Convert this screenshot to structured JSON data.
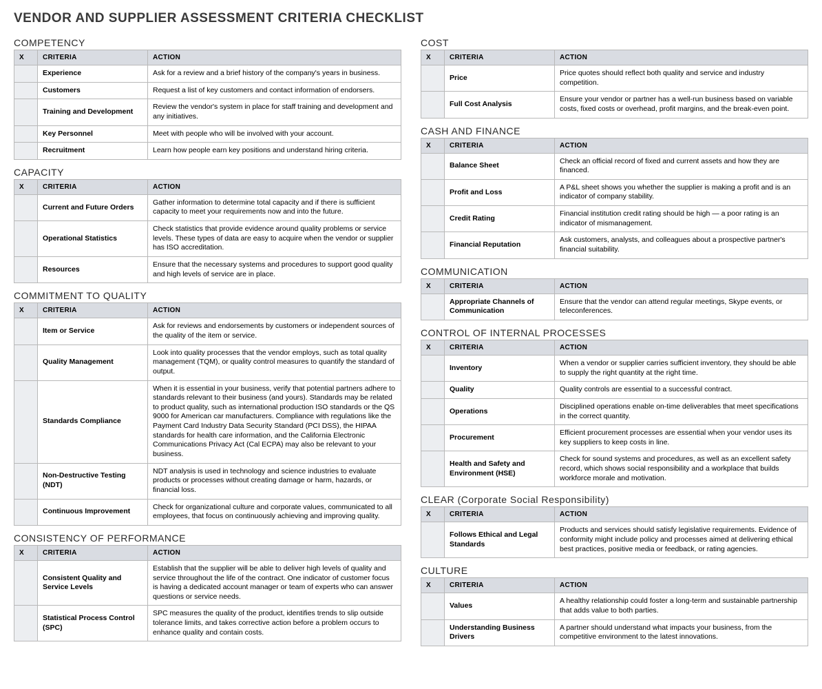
{
  "title": "VENDOR AND SUPPLIER ASSESSMENT CRITERIA CHECKLIST",
  "headers": {
    "x": "X",
    "criteria": "CRITERIA",
    "action": "ACTION"
  },
  "left_sections": [
    {
      "title": "COMPETENCY",
      "rows": [
        {
          "criteria": "Experience",
          "action": "Ask for a review and a brief history of the company's years in business."
        },
        {
          "criteria": "Customers",
          "action": "Request a list of key customers and contact information of endorsers."
        },
        {
          "criteria": "Training and Development",
          "action": "Review the vendor's system in place for staff training and development and any initiatives."
        },
        {
          "criteria": "Key Personnel",
          "action": "Meet with people who will be involved with your account."
        },
        {
          "criteria": "Recruitment",
          "action": "Learn how people earn key positions and understand hiring criteria."
        }
      ]
    },
    {
      "title": "CAPACITY",
      "rows": [
        {
          "criteria": "Current and Future Orders",
          "action": "Gather information to determine total capacity and if there is sufficient capacity to meet your requirements now and into the future."
        },
        {
          "criteria": "Operational Statistics",
          "action": "Check statistics that provide evidence around quality problems or service levels. These types of data are easy to acquire when the vendor or supplier has ISO accreditation."
        },
        {
          "criteria": "Resources",
          "action": "Ensure that the necessary systems and procedures to support good quality and high levels of service are in place."
        }
      ]
    },
    {
      "title": "COMMITMENT TO QUALITY",
      "rows": [
        {
          "criteria": "Item or Service",
          "action": "Ask for reviews and endorsements by customers or independent sources of the quality of the item or service."
        },
        {
          "criteria": "Quality Management",
          "action": "Look into quality processes that the vendor employs, such as total quality management (TQM), or quality control measures to quantify the standard of output."
        },
        {
          "criteria": "Standards Compliance",
          "action": "When it is essential in your business, verify that potential partners adhere to standards relevant to their business (and yours). Standards may be related to product quality, such as international production ISO standards or the QS 9000 for American car manufacturers. Compliance with regulations like the Payment Card Industry Data Security Standard (PCI DSS), the HIPAA standards for health care information, and the California Electronic Communications Privacy Act (Cal ECPA) may also be relevant to your business."
        },
        {
          "criteria": "Non-Destructive Testing (NDT)",
          "action": "NDT analysis is used in technology and science industries to evaluate products or processes without creating damage or harm, hazards, or financial loss."
        },
        {
          "criteria": "Continuous Improvement",
          "action": "Check for organizational culture and corporate values, communicated to all employees, that focus on continuously achieving and improving quality."
        }
      ]
    },
    {
      "title": "CONSISTENCY OF PERFORMANCE",
      "rows": [
        {
          "criteria": "Consistent Quality and Service Levels",
          "action": "Establish that the supplier will be able to deliver high levels of quality and service throughout the life of the contract. One indicator of customer focus is having a dedicated account manager or team of experts who can answer questions or service needs."
        },
        {
          "criteria": "Statistical Process Control (SPC)",
          "action": "SPC measures the quality of the product, identifies trends to slip outside tolerance limits, and takes corrective action before a problem occurs to enhance quality and contain costs."
        }
      ]
    }
  ],
  "right_sections": [
    {
      "title": "COST",
      "rows": [
        {
          "criteria": "Price",
          "action": "Price quotes should reflect both quality and service and industry competition."
        },
        {
          "criteria": "Full Cost Analysis",
          "action": "Ensure your vendor or partner has a well-run business based on variable costs, fixed costs or overhead, profit margins, and the break-even point."
        }
      ]
    },
    {
      "title": "CASH AND FINANCE",
      "rows": [
        {
          "criteria": "Balance Sheet",
          "action": "Check an official record of fixed and current assets and how they are financed."
        },
        {
          "criteria": "Profit and Loss",
          "action": "A P&L sheet shows you whether the supplier is making a profit and is an indicator of company stability."
        },
        {
          "criteria": "Credit Rating",
          "action": "Financial institution credit rating should be high — a poor rating is an indicator of mismanagement."
        },
        {
          "criteria": "Financial Reputation",
          "action": "Ask customers, analysts, and colleagues about a prospective partner's financial suitability."
        }
      ]
    },
    {
      "title": "COMMUNICATION",
      "rows": [
        {
          "criteria": "Appropriate Channels of Communication",
          "action": "Ensure that the vendor can attend regular meetings, Skype events, or teleconferences."
        }
      ]
    },
    {
      "title": "CONTROL OF INTERNAL PROCESSES",
      "rows": [
        {
          "criteria": "Inventory",
          "action": "When a vendor or supplier carries sufficient inventory, they should be able to supply the right quantity at the right time."
        },
        {
          "criteria": "Quality",
          "action": "Quality controls are essential to a successful contract."
        },
        {
          "criteria": "Operations",
          "action": "Disciplined operations enable on-time deliverables that meet specifications in the correct quantity."
        },
        {
          "criteria": "Procurement",
          "action": "Efficient procurement processes are essential when your vendor uses its key suppliers to keep costs in line."
        },
        {
          "criteria": "Health and Safety and Environment (HSE)",
          "action": "Check for sound systems and procedures, as well as an excellent safety record, which shows social responsibility and a workplace that builds workforce morale and motivation."
        }
      ]
    },
    {
      "title": "CLEAR (Corporate Social Responsibility)",
      "rows": [
        {
          "criteria": "Follows Ethical and Legal Standards",
          "action": "Products and services should satisfy legislative requirements. Evidence of conformity might include policy and processes aimed at delivering ethical best practices, positive media or feedback, or rating agencies."
        }
      ]
    },
    {
      "title": "CULTURE",
      "rows": [
        {
          "criteria": "Values",
          "action": "A healthy relationship could foster a long-term and sustainable partnership that adds value to both parties."
        },
        {
          "criteria": "Understanding Business Drivers",
          "action": "A partner should understand what impacts your business, from the competitive environment to the latest innovations."
        }
      ]
    }
  ]
}
